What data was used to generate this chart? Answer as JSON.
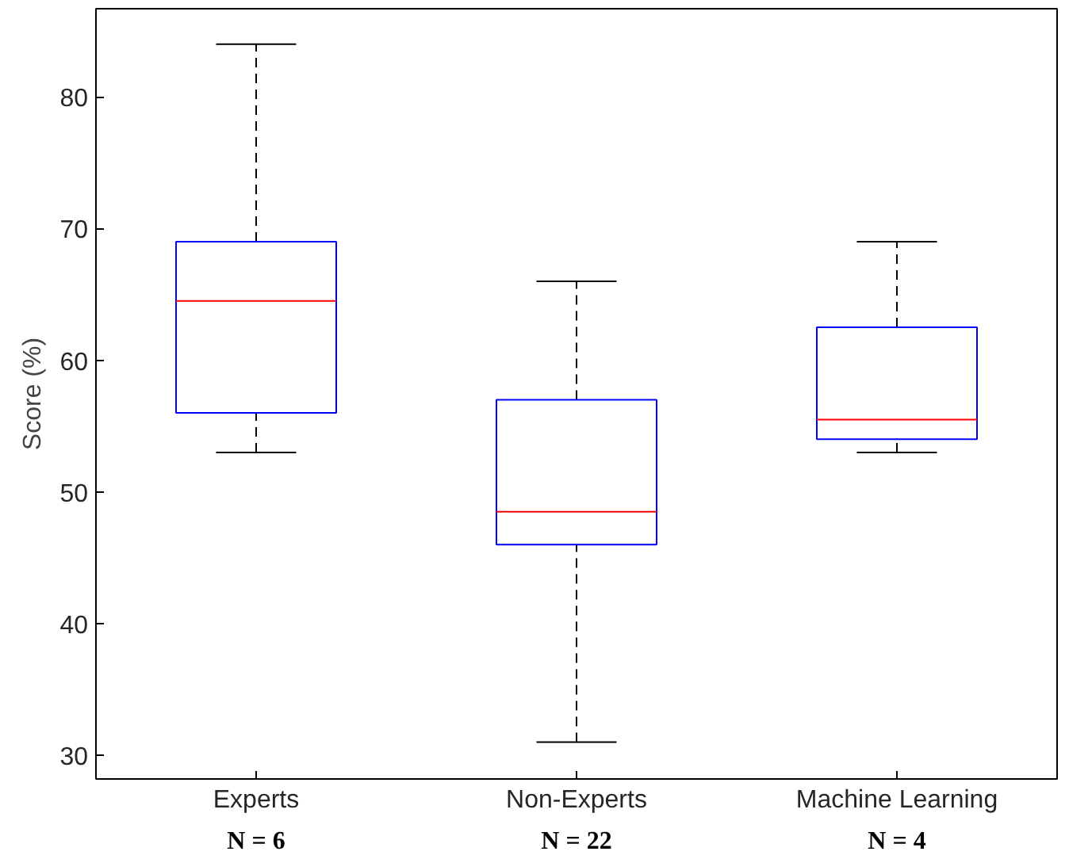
{
  "chart_data": {
    "type": "box",
    "ylabel": "Score (%)",
    "categories": [
      "Experts",
      "Non-Experts",
      "Machine Learning"
    ],
    "boxes": [
      {
        "low": 53,
        "q1": 56,
        "median": 64.5,
        "q3": 69,
        "high": 84
      },
      {
        "low": 31,
        "q1": 46,
        "median": 48.5,
        "q3": 57,
        "high": 66
      },
      {
        "low": 53,
        "q1": 54,
        "median": 55.5,
        "q3": 62.5,
        "high": 69
      }
    ],
    "color": "#0000ff",
    "ylim": [
      28.2,
      86.7
    ],
    "yticks": [
      30,
      40,
      50,
      60,
      70,
      80
    ],
    "grid": false,
    "annotations": [
      "N = 6",
      "N = 22",
      "N = 4"
    ]
  }
}
